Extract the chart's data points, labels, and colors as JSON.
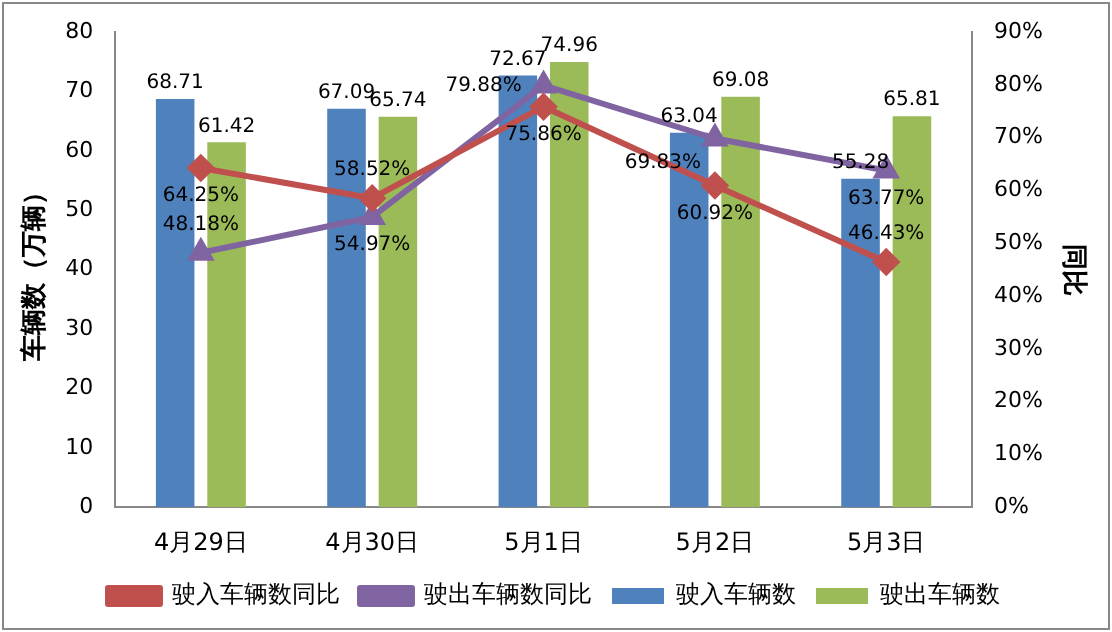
{
  "chart_data": {
    "type": "bar",
    "ylabel": "车辆数（万辆）",
    "y2label": "同比",
    "categories": [
      "4月29日",
      "4月30日",
      "5月1日",
      "5月2日",
      "5月3日"
    ],
    "series": [
      {
        "name": "驶入车辆数",
        "color": "#4f81bd",
        "values": [
          68.71,
          67.09,
          72.67,
          63.04,
          55.28
        ],
        "value_labels": [
          "68.71",
          "67.09",
          "72.67",
          "63.04",
          "55.28"
        ]
      },
      {
        "name": "驶出车辆数",
        "color": "#9bbb59",
        "values": [
          61.42,
          65.74,
          74.96,
          69.08,
          65.81
        ],
        "value_labels": [
          "61.42",
          "65.74",
          "74.96",
          "69.08",
          "65.81"
        ]
      },
      {
        "name": "驶入车辆数同比",
        "type": "line",
        "axis": "y2",
        "marker": "diamond",
        "color": "#c0504d",
        "values": [
          64.25,
          58.52,
          75.86,
          60.92,
          46.43
        ],
        "value_labels": [
          "64.25%",
          "58.52%",
          "75.86%",
          "60.92%",
          "46.43%"
        ]
      },
      {
        "name": "驶出车辆数同比",
        "type": "line",
        "axis": "y2",
        "marker": "triangle",
        "color": "#8064a2",
        "values": [
          48.18,
          54.97,
          79.88,
          69.83,
          63.77
        ],
        "value_labels": [
          "48.18%",
          "54.97%",
          "79.88%",
          "69.83%",
          "63.77%"
        ]
      }
    ],
    "ylim": [
      0,
      80
    ],
    "yticks": [
      0,
      10,
      20,
      30,
      40,
      50,
      60,
      70,
      80
    ],
    "y2lim": [
      0,
      90
    ],
    "y2ticks": [
      {
        "value": 0,
        "label": "0%"
      },
      {
        "value": 10,
        "label": "10%"
      },
      {
        "value": 20,
        "label": "20%"
      },
      {
        "value": 30,
        "label": "30%"
      },
      {
        "value": 40,
        "label": "40%"
      },
      {
        "value": 50,
        "label": "50%"
      },
      {
        "value": 60,
        "label": "60%"
      },
      {
        "value": 70,
        "label": "70%"
      },
      {
        "value": 80,
        "label": "80%"
      },
      {
        "value": 90,
        "label": "90%"
      }
    ],
    "grid": false,
    "legend": "bottom"
  }
}
